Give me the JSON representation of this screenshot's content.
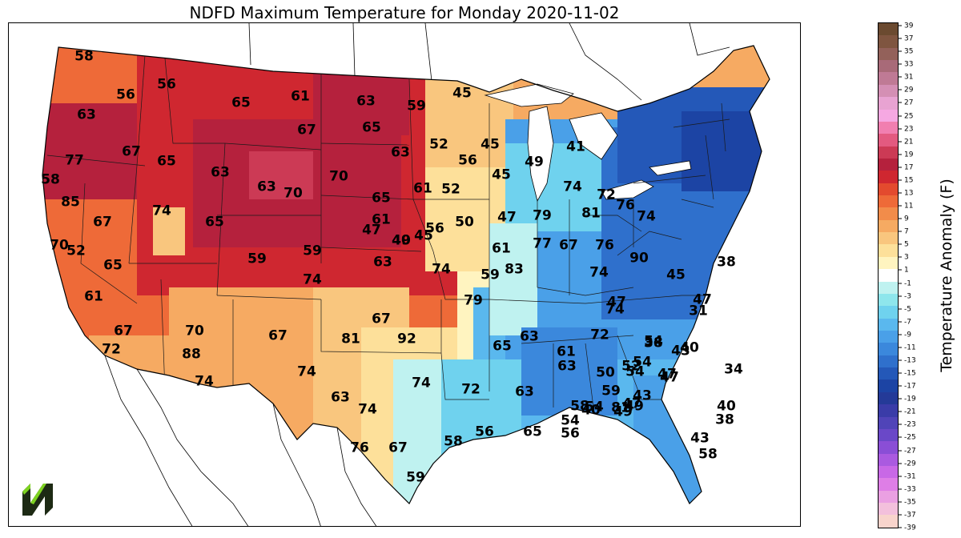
{
  "title": "NDFD Maximum Temperature for Monday 2020-11-02",
  "colorbar": {
    "label": "Temperature Anomaly (F)",
    "ticks": [
      "39",
      "37",
      "35",
      "33",
      "31",
      "29",
      "27",
      "25",
      "23",
      "21",
      "19",
      "17",
      "15",
      "13",
      "11",
      "9",
      "7",
      "5",
      "3",
      "1",
      "-1",
      "-3",
      "-5",
      "-7",
      "-9",
      "-11",
      "-13",
      "-15",
      "-17",
      "-19",
      "-21",
      "-23",
      "-25",
      "-27",
      "-29",
      "-31",
      "-33",
      "-35",
      "-37",
      "-39"
    ],
    "colors": [
      "#6b4a30",
      "#7f5540",
      "#93615a",
      "#a86a78",
      "#bf7a95",
      "#d48fb4",
      "#e8a3d2",
      "#f6a8e2",
      "#f17fb0",
      "#e35a80",
      "#cc3a55",
      "#b5213d",
      "#cf2730",
      "#e34a2e",
      "#ee6a38",
      "#f28c4a",
      "#f6aa62",
      "#f9c67e",
      "#fde09a",
      "#fff4c0",
      "#ffffff",
      "#bff2f0",
      "#8ee6ec",
      "#6fd2ee",
      "#5ab8ee",
      "#4aa0e8",
      "#3b88dc",
      "#2f70cc",
      "#2458b8",
      "#1c44a4",
      "#243a98",
      "#3a3ca8",
      "#5044b8",
      "#6a48c8",
      "#8a4ed6",
      "#aa5ae0",
      "#c868e6",
      "#de7ee6",
      "#eaa0e2",
      "#f3c0dc",
      "#f8d4cc"
    ]
  },
  "map": {
    "labels": [
      {
        "v": "58",
        "c": "#000000"
      },
      {
        "v": "56",
        "c": "#000000"
      },
      {
        "v": "56",
        "c": "#000000"
      },
      {
        "v": "65",
        "c": "#000000"
      },
      {
        "v": "61",
        "c": "#000000"
      },
      {
        "v": "63",
        "c": "#000000"
      },
      {
        "v": "59",
        "c": "#000000"
      },
      {
        "v": "45",
        "c": "#000000"
      },
      {
        "v": "63",
        "c": "#000000"
      },
      {
        "v": "67",
        "c": "#000000"
      },
      {
        "v": "65",
        "c": "#000000"
      },
      {
        "v": "77",
        "c": "#000000"
      },
      {
        "v": "67",
        "c": "#000000"
      },
      {
        "v": "65",
        "c": "#000000"
      },
      {
        "v": "63",
        "c": "#000000"
      },
      {
        "v": "52",
        "c": "#000000"
      },
      {
        "v": "45",
        "c": "#000000"
      },
      {
        "v": "41",
        "c": "#000000"
      },
      {
        "v": "58",
        "c": "#000000"
      },
      {
        "v": "63",
        "c": "#000000"
      },
      {
        "v": "70",
        "c": "#000000"
      },
      {
        "v": "56",
        "c": "#000000"
      },
      {
        "v": "49",
        "c": "#000000"
      },
      {
        "v": "85",
        "c": "#000000"
      },
      {
        "v": "63",
        "c": "#000000"
      },
      {
        "v": "70",
        "c": "#000000"
      },
      {
        "v": "65",
        "c": "#000000"
      },
      {
        "v": "61",
        "c": "#000000"
      },
      {
        "v": "52",
        "c": "#000000"
      },
      {
        "v": "45",
        "c": "#000000"
      },
      {
        "v": "74",
        "c": "#000000"
      },
      {
        "v": "72",
        "c": "#000000"
      },
      {
        "v": "67",
        "c": "#000000"
      },
      {
        "v": "74",
        "c": "#000000"
      },
      {
        "v": "65",
        "c": "#000000"
      },
      {
        "v": "61",
        "c": "#000000"
      },
      {
        "v": "56",
        "c": "#000000"
      },
      {
        "v": "50",
        "c": "#000000"
      },
      {
        "v": "47",
        "c": "#000000"
      },
      {
        "v": "79",
        "c": "#000000"
      },
      {
        "v": "81",
        "c": "#000000"
      },
      {
        "v": "76",
        "c": "#000000"
      },
      {
        "v": "70",
        "c": "#000000"
      },
      {
        "v": "52",
        "c": "#000000"
      },
      {
        "v": "47",
        "c": "#000000"
      },
      {
        "v": "45",
        "c": "#000000"
      },
      {
        "v": "77",
        "c": "#000000"
      },
      {
        "v": "67",
        "c": "#000000"
      },
      {
        "v": "74",
        "c": "#000000"
      },
      {
        "v": "76",
        "c": "#000000"
      },
      {
        "v": "65",
        "c": "#000000"
      },
      {
        "v": "59",
        "c": "#000000"
      },
      {
        "v": "59",
        "c": "#000000"
      },
      {
        "v": "63",
        "c": "#000000"
      },
      {
        "v": "74",
        "c": "#000000"
      },
      {
        "v": "61",
        "c": "#000000"
      },
      {
        "v": "83",
        "c": "#000000"
      },
      {
        "v": "74",
        "c": "#000000"
      },
      {
        "v": "61",
        "c": "#000000"
      },
      {
        "v": "74",
        "c": "#000000"
      },
      {
        "v": "59",
        "c": "#000000"
      },
      {
        "v": "90",
        "c": "#000000"
      },
      {
        "v": "79",
        "c": "#000000"
      },
      {
        "v": "67",
        "c": "#000000"
      },
      {
        "v": "70",
        "c": "#000000"
      },
      {
        "v": "67",
        "c": "#000000"
      },
      {
        "v": "81",
        "c": "#000000"
      },
      {
        "v": "92",
        "c": "#000000"
      },
      {
        "v": "72",
        "c": "#000000"
      },
      {
        "v": "88",
        "c": "#000000"
      },
      {
        "v": "74",
        "c": "#000000"
      },
      {
        "v": "74",
        "c": "#000000"
      },
      {
        "v": "67",
        "c": "#000000"
      },
      {
        "v": "63",
        "c": "#000000"
      },
      {
        "v": "74",
        "c": "#000000"
      },
      {
        "v": "74",
        "c": "#000000"
      },
      {
        "v": "72",
        "c": "#000000"
      },
      {
        "v": "67",
        "c": "#000000"
      },
      {
        "v": "76",
        "c": "#000000"
      },
      {
        "v": "58",
        "c": "#000000"
      },
      {
        "v": "56",
        "c": "#000000"
      },
      {
        "v": "59",
        "c": "#000000"
      },
      {
        "v": "65",
        "c": "#000000"
      },
      {
        "v": "63",
        "c": "#000000"
      },
      {
        "v": "65",
        "c": "#000000"
      },
      {
        "v": "54",
        "c": "#000000"
      },
      {
        "v": "58",
        "c": "#000000"
      },
      {
        "v": "61",
        "c": "#000000"
      },
      {
        "v": "63",
        "c": "#000000"
      },
      {
        "v": "52",
        "c": "#000000"
      },
      {
        "v": "54",
        "c": "#000000"
      },
      {
        "v": "49",
        "c": "#000000"
      },
      {
        "v": "54",
        "c": "#000000"
      },
      {
        "v": "59",
        "c": "#000000"
      },
      {
        "v": "58",
        "c": "#000000"
      },
      {
        "v": "56",
        "c": "#000000"
      },
      {
        "v": "63",
        "c": "#000000"
      },
      {
        "v": "72",
        "c": "#000000"
      },
      {
        "v": "74",
        "c": "#000000"
      },
      {
        "v": "81",
        "c": "#000000"
      },
      {
        "v": "47",
        "c": "#000000"
      },
      {
        "v": "45",
        "c": "#000000"
      },
      {
        "v": "47",
        "c": "#000000"
      },
      {
        "v": "47",
        "c": "#000000"
      },
      {
        "v": "50",
        "c": "#000000"
      },
      {
        "v": "49",
        "c": "#000000"
      },
      {
        "v": "54",
        "c": "#000000"
      },
      {
        "v": "54",
        "c": "#000000"
      },
      {
        "v": "47",
        "c": "#000000"
      },
      {
        "v": "43",
        "c": "#000000"
      },
      {
        "v": "40",
        "c": "#000000"
      },
      {
        "v": "40",
        "c": "#000000"
      },
      {
        "v": "43",
        "c": "#000000"
      },
      {
        "v": "47",
        "c": "#000000"
      },
      {
        "v": "40",
        "c": "#000000"
      },
      {
        "v": "38",
        "c": "#000000"
      },
      {
        "v": "43",
        "c": "#000000"
      },
      {
        "v": "34",
        "c": "#000000"
      },
      {
        "v": "31",
        "c": "#000000"
      },
      {
        "v": "38",
        "c": "#000000"
      },
      {
        "v": "38",
        "c": "#000000"
      },
      {
        "v": "40",
        "c": "#000000"
      },
      {
        "v": "49",
        "c": "#000000"
      }
    ]
  }
}
